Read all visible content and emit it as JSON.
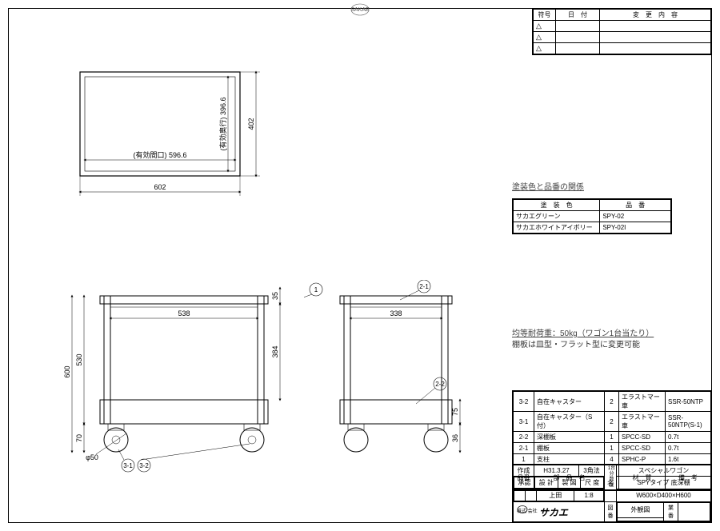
{
  "topview": {
    "dim_w_label": "(有効間口) 596.6",
    "dim_w_out": "602",
    "dim_h_label": "(有効奥行) 396.6",
    "dim_h_out": "402"
  },
  "front": {
    "inner_w": "538",
    "shelf_gap": "384",
    "height_530": "530",
    "height_600": "600",
    "bottom_70": "70",
    "caster_36": "36",
    "caster_dia": "φ50",
    "top_35": "35",
    "balloon_31": "3-1",
    "balloon_32": "3-2",
    "balloon_1": "1"
  },
  "side": {
    "inner_d": "338",
    "balloon_21": "2-1",
    "balloon_22": "2-2",
    "bottom_75": "75"
  },
  "color_table": {
    "title": "塗装色と品番の関係",
    "header_color": "塗　装　色",
    "header_part": "品　番",
    "row1_color": "サカエグリーン",
    "row1_part": "SPY-02",
    "row2_color": "サカエホワイトアイボリー",
    "row2_part": "SPY-02I"
  },
  "load_note1": "均等耐荷重：50kg（ワゴン1台当たり）",
  "load_note2": "棚板は皿型・フラット型に変更可能",
  "bom": {
    "rows": [
      {
        "no": "3-2",
        "name": "自在キャスター",
        "qty": "2",
        "mat": "エラストマー車",
        "rem": "SSR-50NTP"
      },
      {
        "no": "3-1",
        "name": "自在キャスター（S付）",
        "qty": "2",
        "mat": "エラストマー車",
        "rem": "SSR-50NTP(S-1)"
      },
      {
        "no": "2-2",
        "name": "深棚板",
        "qty": "1",
        "mat": "SPCC-SD",
        "rem": "0.7t"
      },
      {
        "no": "2-1",
        "name": "棚板",
        "qty": "1",
        "mat": "SPCC-SD",
        "rem": "0.7t"
      },
      {
        "no": "1",
        "name": "支柱",
        "qty": "4",
        "mat": "SPHC-P",
        "rem": "1.6t"
      }
    ],
    "hdr_no": "品番",
    "hdr_name": "部　品　名",
    "hdr_qty": "1台分\n数量",
    "hdr_mat": "材　質",
    "hdr_rem": "備　考"
  },
  "title_block": {
    "created_lbl": "作成",
    "created": "H31.3.27",
    "angle_lbl": "3角法",
    "name_lbl": "名",
    "line1": "スペシャルワゴン",
    "line2": "SPYタイプ 底深棚",
    "line3": "W600×D400×H600",
    "line4": "外観図",
    "approve_lbl": "承認",
    "design_lbl": "設 計",
    "draw_lbl": "製 図",
    "scale_lbl": "尺 度",
    "drawn_by": "上田",
    "scale": "1:8",
    "company": "株式\n会社",
    "brand": "サカエ",
    "zuban_lbl": "図番",
    "gyoban_lbl": "業番"
  },
  "rev_table": {
    "hdr_sym": "符号",
    "hdr_date": "日　付",
    "hdr_change": "変　更　内　容",
    "tri": "△"
  }
}
